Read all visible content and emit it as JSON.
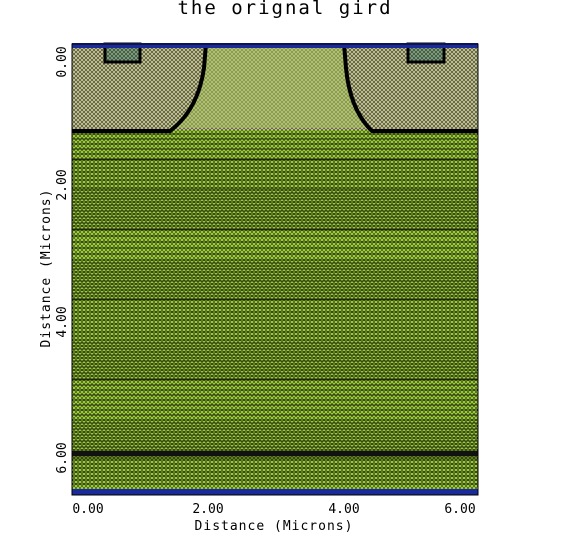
{
  "title": "the orignal gird",
  "xlabel": "Distance (Microns)",
  "ylabel": "Distance (Microns)",
  "x_ticks": [
    "0.00",
    "2.00",
    "4.00",
    "6.00"
  ],
  "y_ticks": [
    "0.00",
    "2.00",
    "4.00",
    "6.00"
  ],
  "x_range": [
    0.0,
    6.0
  ],
  "y_range": [
    -0.05,
    6.55
  ],
  "colors": {
    "contact": "#1a2a9a",
    "poly_region": "#c8c88c",
    "substrate": "#9acd32",
    "grid_lines": "#000000",
    "gate_contact_fill": "#6a9a6a"
  }
}
